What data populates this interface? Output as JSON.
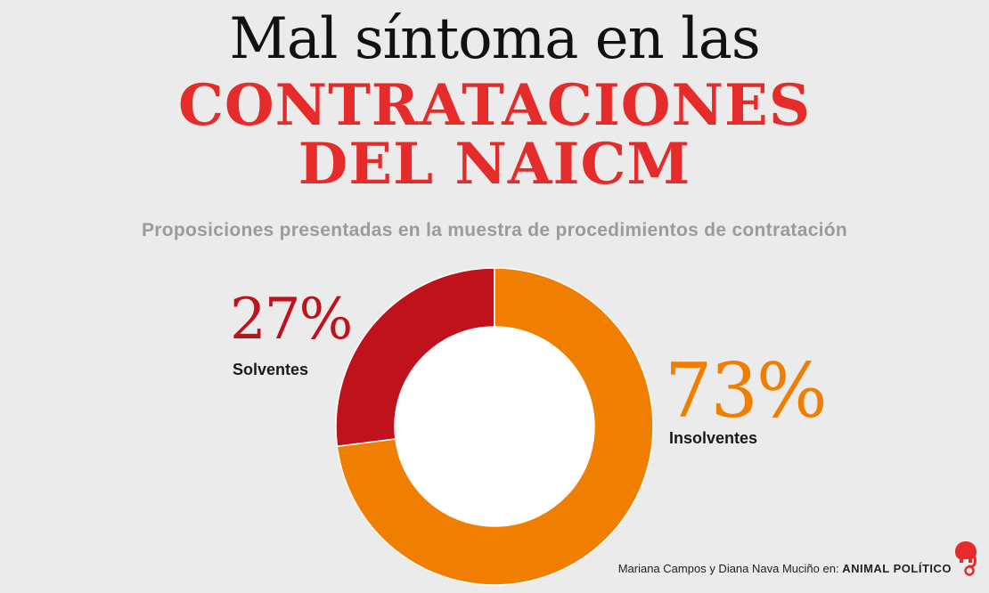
{
  "title": {
    "line1": "Mal síntoma en las",
    "line2": "CONTRATACIONES",
    "line3": "DEL NAICM"
  },
  "subtitle": "Proposiciones presentadas en la muestra de procedimientos de contratación",
  "chart_data": {
    "type": "pie",
    "variant": "donut",
    "slices": [
      {
        "label": "Solventes",
        "value": 27,
        "display": "27%",
        "color": "#c0121c"
      },
      {
        "label": "Insolventes",
        "value": 73,
        "display": "73%",
        "color": "#f07e00"
      }
    ],
    "start_angle_deg": 0,
    "direction": "clockwise"
  },
  "credit": {
    "authors": "Mariana Campos y Diana Nava Muciño en:",
    "brand": "ANIMAL POLÍTICO"
  },
  "colors": {
    "background": "#ebebeb",
    "title_accent": "#e52c2a",
    "subtitle": "#9b9b9b"
  },
  "logo_icon": "elephant-logo-icon"
}
